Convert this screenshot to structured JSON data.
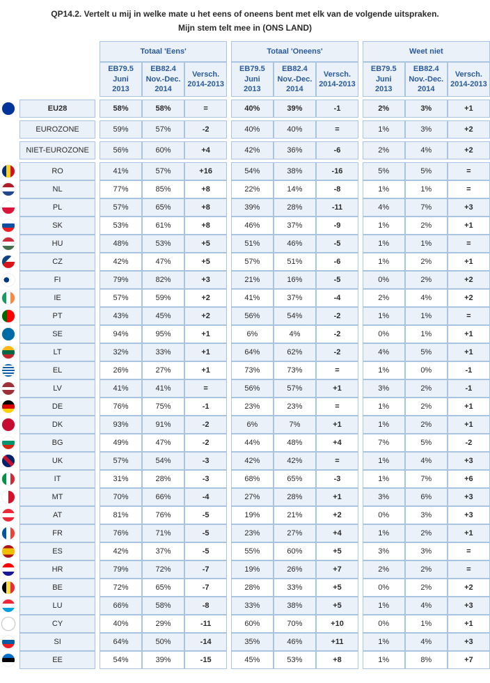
{
  "title": "QP14.2. Vertelt u mij in welke mate u het eens of oneens bent met elk van de volgende uitspraken.",
  "subtitle": "Mijn stem telt mee in (ONS LAND)",
  "groups": [
    {
      "label": "Totaal 'Eens'"
    },
    {
      "label": "Totaal 'Oneens'"
    },
    {
      "label": "Weet niet"
    }
  ],
  "subheaders": [
    "EB79.5 Juni 2013",
    "EB82.4 Nov.-Dec. 2014",
    "Versch. 2014-2013",
    "EB79.5 Juni 2013",
    "EB82.4 Nov.-Dec. 2014",
    "Versch. 2014-2013",
    "EB79.5 Juni 2013",
    "EB82.4 Nov.-Dec. 2014",
    "Versch. 2014-2013"
  ],
  "summary": [
    {
      "label": "EU28",
      "bold": true,
      "flag": "eu",
      "cells": [
        "58%",
        "58%",
        "=",
        "40%",
        "39%",
        "-1",
        "2%",
        "3%",
        "+1"
      ]
    },
    {
      "label": "EUROZONE",
      "bold": false,
      "flag": "",
      "cells": [
        "59%",
        "57%",
        "-2",
        "40%",
        "40%",
        "=",
        "1%",
        "3%",
        "+2"
      ]
    },
    {
      "label": "NIET-EUROZONE",
      "bold": false,
      "flag": "",
      "cells": [
        "56%",
        "60%",
        "+4",
        "42%",
        "36%",
        "-6",
        "2%",
        "4%",
        "+2"
      ]
    }
  ],
  "rows": [
    {
      "label": "RO",
      "flag": "ro",
      "cells": [
        "41%",
        "57%",
        "+16",
        "54%",
        "38%",
        "-16",
        "5%",
        "5%",
        "="
      ]
    },
    {
      "label": "NL",
      "flag": "nl",
      "cells": [
        "77%",
        "85%",
        "+8",
        "22%",
        "14%",
        "-8",
        "1%",
        "1%",
        "="
      ]
    },
    {
      "label": "PL",
      "flag": "pl",
      "cells": [
        "57%",
        "65%",
        "+8",
        "39%",
        "28%",
        "-11",
        "4%",
        "7%",
        "+3"
      ]
    },
    {
      "label": "SK",
      "flag": "sk",
      "cells": [
        "53%",
        "61%",
        "+8",
        "46%",
        "37%",
        "-9",
        "1%",
        "2%",
        "+1"
      ]
    },
    {
      "label": "HU",
      "flag": "hu",
      "cells": [
        "48%",
        "53%",
        "+5",
        "51%",
        "46%",
        "-5",
        "1%",
        "1%",
        "="
      ]
    },
    {
      "label": "CZ",
      "flag": "cz",
      "cells": [
        "42%",
        "47%",
        "+5",
        "57%",
        "51%",
        "-6",
        "1%",
        "2%",
        "+1"
      ]
    },
    {
      "label": "FI",
      "flag": "fi",
      "cells": [
        "79%",
        "82%",
        "+3",
        "21%",
        "16%",
        "-5",
        "0%",
        "2%",
        "+2"
      ]
    },
    {
      "label": "IE",
      "flag": "ie",
      "cells": [
        "57%",
        "59%",
        "+2",
        "41%",
        "37%",
        "-4",
        "2%",
        "4%",
        "+2"
      ]
    },
    {
      "label": "PT",
      "flag": "pt",
      "cells": [
        "43%",
        "45%",
        "+2",
        "56%",
        "54%",
        "-2",
        "1%",
        "1%",
        "="
      ]
    },
    {
      "label": "SE",
      "flag": "se",
      "cells": [
        "94%",
        "95%",
        "+1",
        "6%",
        "4%",
        "-2",
        "0%",
        "1%",
        "+1"
      ]
    },
    {
      "label": "LT",
      "flag": "lt",
      "cells": [
        "32%",
        "33%",
        "+1",
        "64%",
        "62%",
        "-2",
        "4%",
        "5%",
        "+1"
      ]
    },
    {
      "label": "EL",
      "flag": "el",
      "cells": [
        "26%",
        "27%",
        "+1",
        "73%",
        "73%",
        "=",
        "1%",
        "0%",
        "-1"
      ]
    },
    {
      "label": "LV",
      "flag": "lv",
      "cells": [
        "41%",
        "41%",
        "=",
        "56%",
        "57%",
        "+1",
        "3%",
        "2%",
        "-1"
      ]
    },
    {
      "label": "DE",
      "flag": "de",
      "cells": [
        "76%",
        "75%",
        "-1",
        "23%",
        "23%",
        "=",
        "1%",
        "2%",
        "+1"
      ]
    },
    {
      "label": "DK",
      "flag": "dk",
      "cells": [
        "93%",
        "91%",
        "-2",
        "6%",
        "7%",
        "+1",
        "1%",
        "2%",
        "+1"
      ]
    },
    {
      "label": "BG",
      "flag": "bg",
      "cells": [
        "49%",
        "47%",
        "-2",
        "44%",
        "48%",
        "+4",
        "7%",
        "5%",
        "-2"
      ]
    },
    {
      "label": "UK",
      "flag": "uk",
      "cells": [
        "57%",
        "54%",
        "-3",
        "42%",
        "42%",
        "=",
        "1%",
        "4%",
        "+3"
      ]
    },
    {
      "label": "IT",
      "flag": "it",
      "cells": [
        "31%",
        "28%",
        "-3",
        "68%",
        "65%",
        "-3",
        "1%",
        "7%",
        "+6"
      ]
    },
    {
      "label": "MT",
      "flag": "mt",
      "cells": [
        "70%",
        "66%",
        "-4",
        "27%",
        "28%",
        "+1",
        "3%",
        "6%",
        "+3"
      ]
    },
    {
      "label": "AT",
      "flag": "at",
      "cells": [
        "81%",
        "76%",
        "-5",
        "19%",
        "21%",
        "+2",
        "0%",
        "3%",
        "+3"
      ]
    },
    {
      "label": "FR",
      "flag": "fr",
      "cells": [
        "76%",
        "71%",
        "-5",
        "23%",
        "27%",
        "+4",
        "1%",
        "2%",
        "+1"
      ]
    },
    {
      "label": "ES",
      "flag": "es",
      "cells": [
        "42%",
        "37%",
        "-5",
        "55%",
        "60%",
        "+5",
        "3%",
        "3%",
        "="
      ]
    },
    {
      "label": "HR",
      "flag": "hr",
      "cells": [
        "79%",
        "72%",
        "-7",
        "19%",
        "26%",
        "+7",
        "2%",
        "2%",
        "="
      ]
    },
    {
      "label": "BE",
      "flag": "be",
      "cells": [
        "72%",
        "65%",
        "-7",
        "28%",
        "33%",
        "+5",
        "0%",
        "2%",
        "+2"
      ]
    },
    {
      "label": "LU",
      "flag": "lu",
      "cells": [
        "66%",
        "58%",
        "-8",
        "33%",
        "38%",
        "+5",
        "1%",
        "4%",
        "+3"
      ]
    },
    {
      "label": "CY",
      "flag": "cy",
      "cells": [
        "40%",
        "29%",
        "-11",
        "60%",
        "70%",
        "+10",
        "0%",
        "1%",
        "+1"
      ]
    },
    {
      "label": "SI",
      "flag": "si",
      "cells": [
        "64%",
        "50%",
        "-14",
        "35%",
        "46%",
        "+11",
        "1%",
        "4%",
        "+3"
      ]
    },
    {
      "label": "EE",
      "flag": "ee",
      "cells": [
        "54%",
        "39%",
        "-15",
        "45%",
        "53%",
        "+8",
        "1%",
        "8%",
        "+7"
      ]
    }
  ],
  "flag_styles": {
    "eu": "background:#003399;",
    "ro": "background:linear-gradient(90deg,#002b7f 33%,#fcd116 33%,#fcd116 66%,#ce1126 66%);",
    "nl": "background:linear-gradient(#ae1c28 33%,#fff 33%,#fff 66%,#21468b 66%);",
    "pl": "background:linear-gradient(#fff 50%,#dc143c 50%);",
    "sk": "background:linear-gradient(#fff 33%,#0b4ea2 33%,#0b4ea2 66%,#ee1c25 66%);",
    "hu": "background:linear-gradient(#cd2a3e 33%,#fff 33%,#fff 66%,#436f4d 66%);",
    "cz": "background:linear-gradient(135deg,#11457e 40%,transparent 40%),linear-gradient(#fff 50%,#d7141a 50%);",
    "fi": "background:radial-gradient(circle at 35% 50%,#003580 25%,transparent 26%),linear-gradient(#fff,#fff);",
    "ie": "background:linear-gradient(90deg,#169b62 33%,#fff 33%,#fff 66%,#ff883e 66%);",
    "pt": "background:linear-gradient(90deg,#006600 40%,#ff0000 40%);",
    "se": "background:#006aa7;",
    "lt": "background:linear-gradient(#fdb913 33%,#006a44 33%,#006a44 66%,#c1272d 66%);",
    "el": "background:repeating-linear-gradient(#0d5eaf 0 2px,#fff 2px 4px);",
    "lv": "background:linear-gradient(#9e3039 40%,#fff 40%,#fff 60%,#9e3039 60%);",
    "de": "background:linear-gradient(#000 33%,#dd0000 33%,#dd0000 66%,#ffce00 66%);",
    "dk": "background:#c60c30;",
    "bg": "background:linear-gradient(#fff 33%,#00966e 33%,#00966e 66%,#d62612 66%);",
    "uk": "background:linear-gradient(45deg,#012169 40%,#c8102e 40%,#c8102e 60%,#012169 60%);",
    "it": "background:linear-gradient(90deg,#009246 33%,#fff 33%,#fff 66%,#ce2b37 66%);",
    "mt": "background:linear-gradient(90deg,#fff 50%,#cf142b 50%);",
    "at": "background:linear-gradient(#ed2939 33%,#fff 33%,#fff 66%,#ed2939 66%);",
    "fr": "background:linear-gradient(90deg,#0055a4 33%,#fff 33%,#fff 66%,#ef4135 66%);",
    "es": "background:linear-gradient(#aa151b 25%,#f1bf00 25%,#f1bf00 75%,#aa151b 75%);",
    "hr": "background:linear-gradient(#ff0000 33%,#fff 33%,#fff 66%,#171796 66%);",
    "be": "background:linear-gradient(90deg,#000 33%,#fae042 33%,#fae042 66%,#ed2939 66%);",
    "lu": "background:linear-gradient(#ed2939 33%,#fff 33%,#fff 66%,#00a1de 66%);",
    "cy": "background:#fff;border:1px solid #d0d0d0;",
    "si": "background:linear-gradient(#fff 33%,#005da4 33%,#005da4 66%,#ed1c24 66%);",
    "ee": "background:linear-gradient(#0072ce 33%,#000 33%,#000 66%,#fff 66%);"
  }
}
